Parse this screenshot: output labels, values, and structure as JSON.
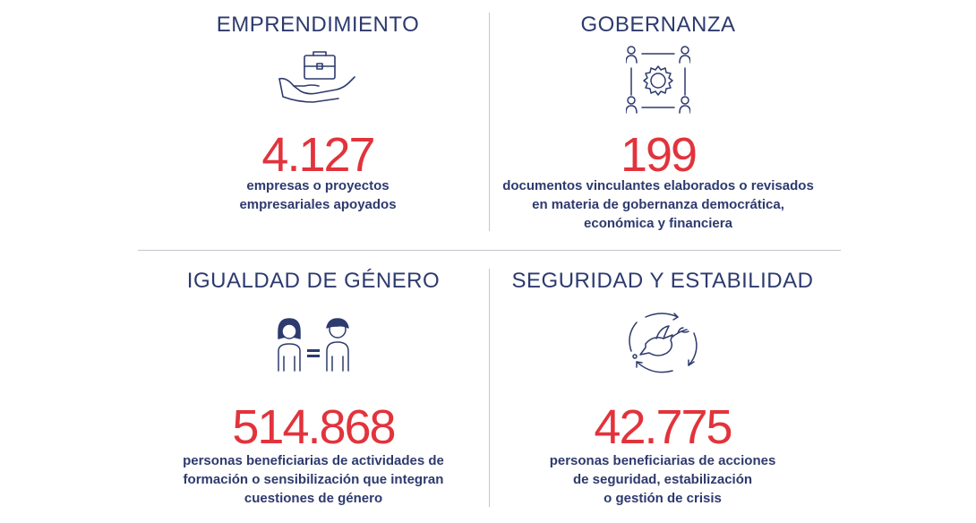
{
  "colors": {
    "navy": "#2d3a6e",
    "red": "#e2333c",
    "divider": "#c4c6cc"
  },
  "panels": [
    {
      "title": "EMPRENDIMIENTO",
      "icon": "hand-holding-briefcase-icon",
      "number": "4.127",
      "description": "empresas o proyectos\nempresariales apoyados"
    },
    {
      "title": "GOBERNANZA",
      "icon": "gear-people-network-icon",
      "number": "199",
      "description": "documentos vinculantes elaborados o revisados\nen materia de gobernanza democrática,\neconómica y financiera"
    },
    {
      "title": "IGUALDAD DE GÉNERO",
      "icon": "woman-equals-man-icon",
      "number": "514.868",
      "description": "personas beneficiarias de actividades de\nformación o sensibilización que integran\ncuestiones de género"
    },
    {
      "title": "SEGURIDAD Y ESTABILIDAD",
      "icon": "dove-cycle-arrows-icon",
      "number": "42.775",
      "description": "personas beneficiarias de acciones\nde seguridad, estabilización\no gestión de crisis"
    }
  ]
}
